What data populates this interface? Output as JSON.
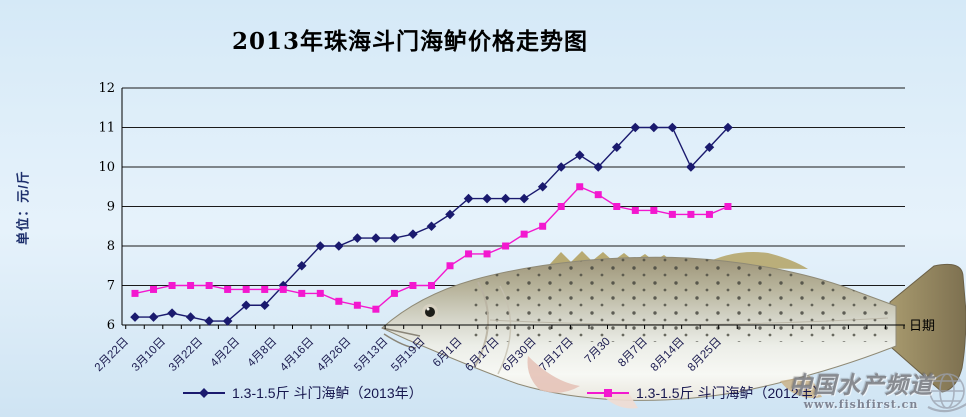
{
  "title": "2013年珠海斗门海鲈价格走势图",
  "y_axis_label": "单位：元/斤",
  "x_axis_label": "日期",
  "legend": [
    {
      "label": "1.3-1.5斤 斗门海鲈（2013年）",
      "color": "#1a1a6e",
      "marker": "diamond"
    },
    {
      "label": "1.3-1.5斤 斗门海鲈（2012年）",
      "color": "#f318cf",
      "marker": "square"
    }
  ],
  "watermark": {
    "name": "中国水产频道",
    "url": "www.fishfirst.cn"
  },
  "colors": {
    "series_2013": "#1a1a6e",
    "series_2012": "#f318cf",
    "grid": "#1a1a1a",
    "axis_text": "#1c1c50",
    "y_label": "#1c2e6b"
  },
  "chart_data": {
    "type": "line",
    "title": "2013年珠海斗门海鲈价格走势图",
    "xlabel": "日期",
    "ylabel": "单位：元/斤",
    "ylim": [
      6,
      12
    ],
    "y_ticks": [
      6,
      7,
      8,
      9,
      10,
      11,
      12
    ],
    "grid": true,
    "legend_position": "bottom",
    "x_tick_labels": [
      "2月22日",
      "3月10日",
      "3月22日",
      "4月2日",
      "4月8日",
      "4月16日",
      "4月26日",
      "5月13日",
      "5月19日",
      "6月1日",
      "6月17日",
      "6月30日",
      "7月17日",
      "7月30",
      "8月7日",
      "8月14日",
      "8月25日"
    ],
    "label_interval": 2,
    "total_category_slots": 42,
    "series": [
      {
        "name": "1.3-1.5斤 斗门海鲈（2013年）",
        "color": "#1a1a6e",
        "marker": "diamond",
        "values": [
          6.2,
          6.2,
          6.3,
          6.2,
          6.1,
          6.1,
          6.5,
          6.5,
          7.0,
          7.5,
          8.0,
          8.0,
          8.2,
          8.2,
          8.2,
          8.3,
          8.5,
          8.8,
          9.2,
          9.2,
          9.2,
          9.2,
          9.5,
          10.0,
          10.3,
          10.0,
          10.5,
          11.0,
          11.0,
          11.0,
          10.0,
          10.5,
          11.0
        ]
      },
      {
        "name": "1.3-1.5斤 斗门海鲈（2012年）",
        "color": "#f318cf",
        "marker": "square",
        "values": [
          6.8,
          6.9,
          7.0,
          7.0,
          7.0,
          6.9,
          6.9,
          6.9,
          6.9,
          6.8,
          6.8,
          6.6,
          6.5,
          6.4,
          6.8,
          7.0,
          7.0,
          7.5,
          7.8,
          7.8,
          8.0,
          8.3,
          8.5,
          9.0,
          9.5,
          9.3,
          9.0,
          8.9,
          8.9,
          8.8,
          8.8,
          8.8,
          9.0
        ]
      }
    ]
  }
}
